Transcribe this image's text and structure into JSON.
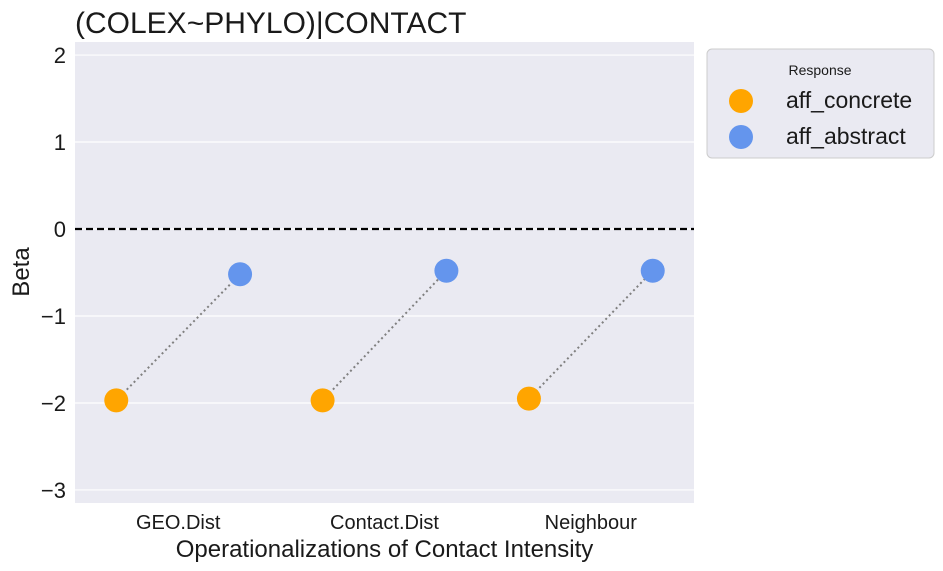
{
  "chart_data": {
    "type": "scatter",
    "title": "(COLEX~PHYLO)|CONTACT",
    "xlabel": "Operationalizations of Contact Intensity",
    "ylabel": "Beta",
    "categories": [
      "GEO.Dist",
      "Contact.Dist",
      "Neighbour"
    ],
    "ylim": [
      -3.15,
      2.15
    ],
    "yticks": [
      2,
      1,
      0,
      -1,
      -2,
      -3
    ],
    "ytick_labels": [
      "2",
      "1",
      "0",
      "−1",
      "−2",
      "−3"
    ],
    "reference_line": {
      "y": 0,
      "style": "dashed",
      "color": "#000000"
    },
    "connector": {
      "style": "dotted",
      "color": "#808080"
    },
    "grid": true,
    "legend": {
      "title": "Response",
      "placement": "outside-top-right"
    },
    "series": [
      {
        "name": "aff_concrete",
        "color": "#FFA500",
        "values": [
          -1.97,
          -1.97,
          -1.95
        ]
      },
      {
        "name": "aff_abstract",
        "color": "#6495ED",
        "values": [
          -0.52,
          -0.48,
          -0.48
        ]
      }
    ]
  }
}
